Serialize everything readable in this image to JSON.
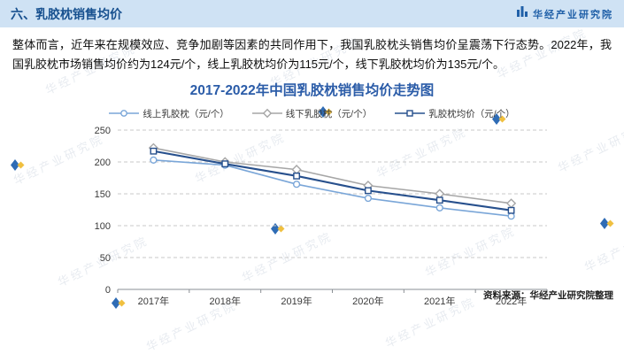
{
  "header": {
    "title": "六、乳胶枕销售均价",
    "brand": "华经产业研究院"
  },
  "paragraph": "整体而言，近年来在规模效应、竞争加剧等因素的共同作用下，我国乳胶枕头销售均价呈震荡下行态势。2022年，我国乳胶枕市场销售均价约为124元/个，线上乳胶枕均价为115元/个，线下乳胶枕均价为135元/个。",
  "chart_data": {
    "type": "line",
    "title": "2017-2022年中国乳胶枕销售均价走势图",
    "categories": [
      "2017年",
      "2018年",
      "2019年",
      "2020年",
      "2021年",
      "2022年"
    ],
    "series": [
      {
        "name": "线上乳胶枕（元/个）",
        "marker": "circle",
        "color": "#7aa6d8",
        "values": [
          203,
          195,
          165,
          143,
          128,
          115
        ]
      },
      {
        "name": "线下乳胶枕（元/个）",
        "marker": "diamond",
        "color": "#a6a6a6",
        "values": [
          222,
          200,
          188,
          163,
          150,
          135
        ]
      },
      {
        "name": "乳胶枕均价（元/个）",
        "marker": "square",
        "color": "#27508d",
        "values": [
          217,
          197,
          178,
          155,
          140,
          124
        ]
      }
    ],
    "ylim": [
      0,
      250
    ],
    "yticks": [
      0,
      50,
      100,
      150,
      200,
      250
    ],
    "grid": "horizontal-dashed",
    "legend_position": "top"
  },
  "footer": {
    "source": "资料来源：华经产业研究院整理"
  },
  "watermark": {
    "text": "华经产业研究院"
  },
  "colors": {
    "header_bg": "#cfe2f4",
    "header_text": "#17508f",
    "brand_text": "#2060a8",
    "chart_title": "#2b5ca8",
    "accent_blue": "#2f6cb5",
    "accent_yellow": "#f0c040",
    "grid_line": "#c8c8c8",
    "axis_line": "#8a8f94"
  }
}
